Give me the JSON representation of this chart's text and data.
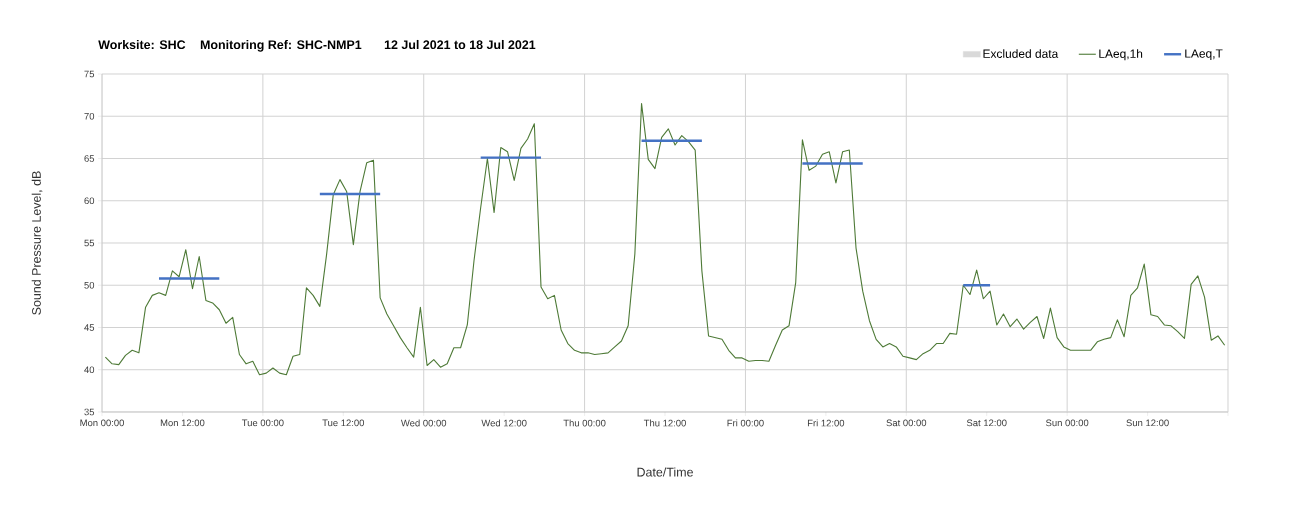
{
  "chart_data": {
    "type": "line",
    "title": "Worksite: SHC",
    "subtitle": "Monitoring Ref: SHC-NMP1",
    "annotations": [
      "12 Jul 2021 to 18 Jul 2021"
    ],
    "xlabel": "Date/Time",
    "ylabel": "Sound Pressure Level, dB",
    "xlim": [
      "2021-07-12T00:00",
      "2021-07-19T00:00"
    ],
    "ylim": [
      35,
      75
    ],
    "xticks": [
      {
        "value": "2021-07-12T00:00",
        "label": "Mon 00:00"
      },
      {
        "value": "2021-07-12T12:00",
        "label": "Mon 12:00"
      },
      {
        "value": "2021-07-13T00:00",
        "label": "Tue 00:00"
      },
      {
        "value": "2021-07-13T12:00",
        "label": "Tue 12:00"
      },
      {
        "value": "2021-07-14T00:00",
        "label": "Wed 00:00"
      },
      {
        "value": "2021-07-14T12:00",
        "label": "Wed 12:00"
      },
      {
        "value": "2021-07-15T00:00",
        "label": "Thu 00:00"
      },
      {
        "value": "2021-07-15T12:00",
        "label": "Thu 12:00"
      },
      {
        "value": "2021-07-16T00:00",
        "label": "Fri 00:00"
      },
      {
        "value": "2021-07-16T12:00",
        "label": "Fri 12:00"
      },
      {
        "value": "2021-07-17T00:00",
        "label": "Sat 00:00"
      },
      {
        "value": "2021-07-17T12:00",
        "label": "Sat 12:00"
      },
      {
        "value": "2021-07-18T00:00",
        "label": "Sun 00:00"
      },
      {
        "value": "2021-07-18T12:00",
        "label": "Sun 12:00"
      },
      {
        "value": "2021-07-19T00:00",
        "label": null
      }
    ],
    "yticks": [
      35,
      40,
      45,
      50,
      55,
      60,
      65,
      70,
      75
    ],
    "grid": true,
    "legend": "top right",
    "series": [
      {
        "name": "Excluded data",
        "type": "area",
        "color": "#d9d9d9"
      },
      {
        "name": "LAeq,1h",
        "color": "#4e7a37",
        "x": [
          "2021-07-12T00:30",
          "2021-07-12T01:30",
          "2021-07-12T02:30",
          "2021-07-12T03:30",
          "2021-07-12T04:30",
          "2021-07-12T05:30",
          "2021-07-12T06:30",
          "2021-07-12T07:30",
          "2021-07-12T08:30",
          "2021-07-12T09:30",
          "2021-07-12T10:30",
          "2021-07-12T11:30",
          "2021-07-12T12:30",
          "2021-07-12T13:30",
          "2021-07-12T14:30",
          "2021-07-12T15:30",
          "2021-07-12T16:30",
          "2021-07-12T17:30",
          "2021-07-12T18:30",
          "2021-07-12T19:30",
          "2021-07-12T20:30",
          "2021-07-12T21:30",
          "2021-07-12T22:30",
          "2021-07-12T23:30",
          "2021-07-13T00:30",
          "2021-07-13T01:30",
          "2021-07-13T02:30",
          "2021-07-13T03:30",
          "2021-07-13T04:30",
          "2021-07-13T05:30",
          "2021-07-13T06:30",
          "2021-07-13T07:30",
          "2021-07-13T08:30",
          "2021-07-13T09:30",
          "2021-07-13T10:30",
          "2021-07-13T11:30",
          "2021-07-13T12:30",
          "2021-07-13T13:30",
          "2021-07-13T14:30",
          "2021-07-13T15:30",
          "2021-07-13T16:30",
          "2021-07-13T17:30",
          "2021-07-13T18:30",
          "2021-07-13T19:30",
          "2021-07-13T20:30",
          "2021-07-13T21:30",
          "2021-07-13T22:30",
          "2021-07-13T23:30",
          "2021-07-14T00:30",
          "2021-07-14T01:30",
          "2021-07-14T02:30",
          "2021-07-14T03:30",
          "2021-07-14T04:30",
          "2021-07-14T05:30",
          "2021-07-14T06:30",
          "2021-07-14T07:30",
          "2021-07-14T08:30",
          "2021-07-14T09:30",
          "2021-07-14T10:30",
          "2021-07-14T11:30",
          "2021-07-14T12:30",
          "2021-07-14T13:30",
          "2021-07-14T14:30",
          "2021-07-14T15:30",
          "2021-07-14T16:30",
          "2021-07-14T17:30",
          "2021-07-14T18:30",
          "2021-07-14T19:30",
          "2021-07-14T20:30",
          "2021-07-14T21:30",
          "2021-07-14T22:30",
          "2021-07-14T23:30",
          "2021-07-15T00:30",
          "2021-07-15T01:30",
          "2021-07-15T02:30",
          "2021-07-15T03:30",
          "2021-07-15T04:30",
          "2021-07-15T05:30",
          "2021-07-15T06:30",
          "2021-07-15T07:30",
          "2021-07-15T08:30",
          "2021-07-15T09:30",
          "2021-07-15T10:30",
          "2021-07-15T11:30",
          "2021-07-15T12:30",
          "2021-07-15T13:30",
          "2021-07-15T14:30",
          "2021-07-15T15:30",
          "2021-07-15T16:30",
          "2021-07-15T17:30",
          "2021-07-15T18:30",
          "2021-07-15T19:30",
          "2021-07-15T20:30",
          "2021-07-15T21:30",
          "2021-07-15T22:30",
          "2021-07-15T23:30",
          "2021-07-16T00:30",
          "2021-07-16T01:30",
          "2021-07-16T02:30",
          "2021-07-16T03:30",
          "2021-07-16T04:30",
          "2021-07-16T05:30",
          "2021-07-16T06:30",
          "2021-07-16T07:30",
          "2021-07-16T08:30",
          "2021-07-16T09:30",
          "2021-07-16T10:30",
          "2021-07-16T11:30",
          "2021-07-16T12:30",
          "2021-07-16T13:30",
          "2021-07-16T14:30",
          "2021-07-16T15:30",
          "2021-07-16T16:30",
          "2021-07-16T17:30",
          "2021-07-16T18:30",
          "2021-07-16T19:30",
          "2021-07-16T20:30",
          "2021-07-16T21:30",
          "2021-07-16T22:30",
          "2021-07-16T23:30",
          "2021-07-17T00:30",
          "2021-07-17T01:30",
          "2021-07-17T02:30",
          "2021-07-17T03:30",
          "2021-07-17T04:30",
          "2021-07-17T05:30",
          "2021-07-17T06:30",
          "2021-07-17T07:30",
          "2021-07-17T08:30",
          "2021-07-17T09:30",
          "2021-07-17T10:30",
          "2021-07-17T11:30",
          "2021-07-17T12:30",
          "2021-07-17T13:30",
          "2021-07-17T14:30",
          "2021-07-17T15:30",
          "2021-07-17T16:30",
          "2021-07-17T17:30",
          "2021-07-17T18:30",
          "2021-07-17T19:30",
          "2021-07-17T20:30",
          "2021-07-17T21:30",
          "2021-07-17T22:30",
          "2021-07-17T23:30",
          "2021-07-18T00:30",
          "2021-07-18T01:30",
          "2021-07-18T02:30",
          "2021-07-18T03:30",
          "2021-07-18T04:30",
          "2021-07-18T05:30",
          "2021-07-18T06:30",
          "2021-07-18T07:30",
          "2021-07-18T08:30",
          "2021-07-18T09:30",
          "2021-07-18T10:30",
          "2021-07-18T11:30",
          "2021-07-18T12:30",
          "2021-07-18T13:30",
          "2021-07-18T14:30",
          "2021-07-18T15:30",
          "2021-07-18T16:30",
          "2021-07-18T17:30",
          "2021-07-18T18:30",
          "2021-07-18T19:30",
          "2021-07-18T20:30",
          "2021-07-18T21:30",
          "2021-07-18T22:30",
          "2021-07-18T23:30"
        ],
        "values": [
          41.5,
          40.7,
          40.6,
          41.7,
          42.3,
          42.0,
          47.4,
          48.8,
          49.1,
          48.8,
          51.7,
          51.0,
          54.2,
          49.6,
          53.4,
          48.2,
          47.9,
          47.1,
          45.5,
          46.2,
          41.8,
          40.7,
          41.0,
          39.4,
          39.6,
          40.2,
          39.6,
          39.4,
          41.6,
          41.8,
          49.7,
          48.8,
          47.5,
          53.6,
          60.7,
          62.5,
          61.1,
          54.8,
          61.1,
          64.5,
          64.8,
          48.5,
          46.6,
          45.2,
          43.8,
          42.6,
          41.5,
          47.4,
          40.5,
          41.2,
          40.3,
          40.7,
          42.6,
          42.6,
          45.3,
          52.9,
          59.2,
          65.0,
          58.6,
          66.3,
          65.8,
          62.4,
          66.2,
          67.3,
          69.1,
          49.8,
          48.4,
          48.8,
          44.7,
          43.1,
          42.3,
          42.0,
          42.0,
          41.8,
          41.9,
          42.0,
          42.7,
          43.4,
          45.2,
          53.7,
          71.5,
          64.9,
          63.8,
          67.5,
          68.5,
          66.6,
          67.7,
          67.0,
          66.0,
          51.7,
          44.0,
          43.8,
          43.6,
          42.3,
          41.4,
          41.4,
          41.0,
          41.1,
          41.1,
          41.0,
          42.9,
          44.7,
          45.2,
          50.3,
          67.2,
          63.6,
          64.1,
          65.5,
          65.8,
          62.1,
          65.8,
          66.0,
          54.4,
          49.3,
          45.8,
          43.6,
          42.7,
          43.1,
          42.7,
          41.6,
          41.4,
          41.2,
          41.9,
          42.3,
          43.1,
          43.1,
          44.3,
          44.2,
          50.0,
          48.9,
          51.8,
          48.4,
          49.3,
          45.3,
          46.6,
          45.1,
          46.0,
          44.8,
          45.6,
          46.3,
          43.7,
          47.3,
          43.8,
          42.7,
          42.3,
          42.3,
          42.3,
          42.3,
          43.3,
          43.6,
          43.8,
          45.9,
          43.9,
          48.8,
          49.7,
          52.5,
          46.5,
          46.3,
          45.3,
          45.2,
          44.5,
          43.7,
          50.1,
          51.1,
          48.6,
          43.5,
          44.0,
          42.9
        ]
      },
      {
        "name": "LAeq,T",
        "color": "#4472c4",
        "x": [
          "2021-07-12T08:30",
          "2021-07-12T17:30",
          "2021-07-13T01:00",
          "2021-07-13T08:30",
          "2021-07-13T17:30",
          "2021-07-14T01:00",
          "2021-07-14T08:30",
          "2021-07-14T17:30",
          "2021-07-15T01:00",
          "2021-07-15T08:30",
          "2021-07-15T17:30",
          "2021-07-16T01:00",
          "2021-07-16T08:30",
          "2021-07-16T17:30",
          "2021-07-17T01:00",
          "2021-07-17T08:30",
          "2021-07-17T12:30"
        ],
        "values": [
          50.8,
          50.8,
          null,
          60.8,
          60.8,
          null,
          65.1,
          65.1,
          null,
          67.1,
          67.1,
          null,
          64.4,
          64.4,
          null,
          50.0,
          50.0
        ]
      }
    ]
  }
}
